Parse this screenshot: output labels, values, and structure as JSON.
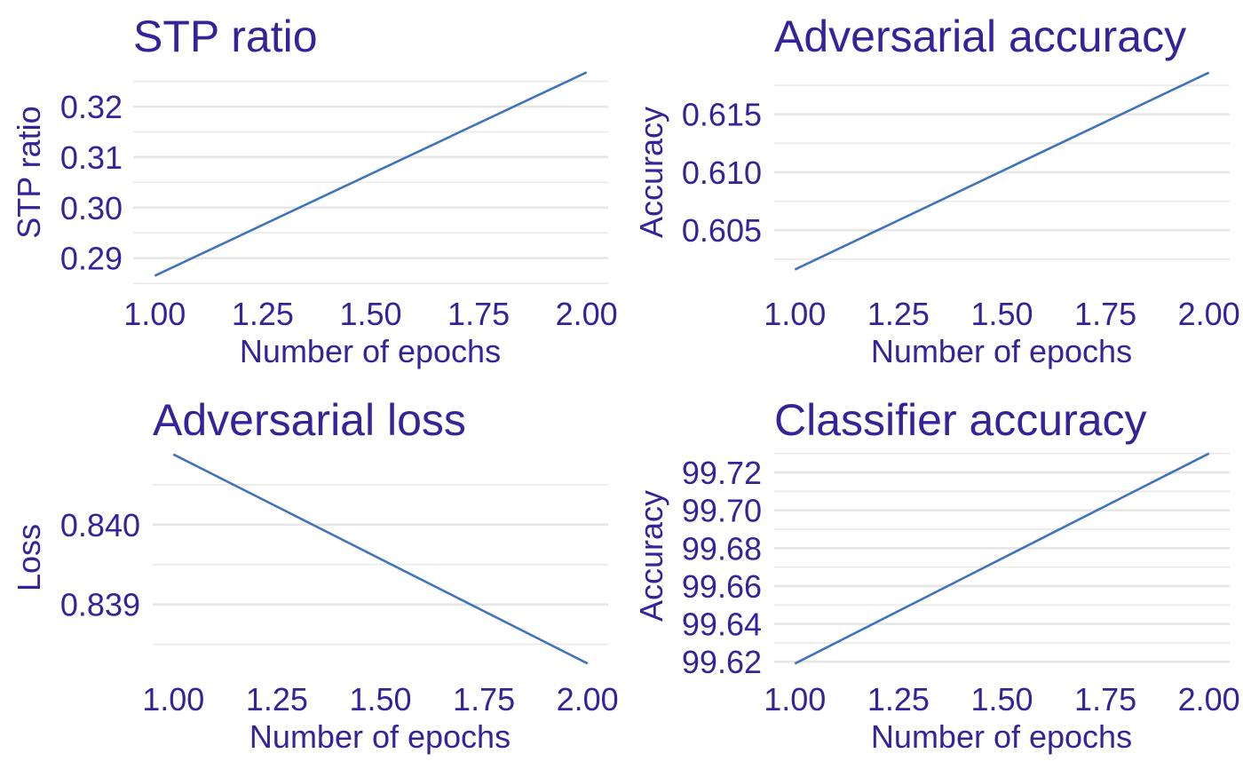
{
  "chart_data": [
    {
      "type": "line",
      "title": "STP ratio",
      "xlabel": "Number of epochs",
      "ylabel": "STP ratio",
      "x": [
        1.0,
        2.0
      ],
      "y": [
        0.2865,
        0.3268
      ],
      "xlim": [
        0.95,
        2.05
      ],
      "ylim": [
        0.2845,
        0.3288
      ],
      "xticks": [
        1.0,
        1.25,
        1.5,
        1.75,
        2.0
      ],
      "xtick_labels": [
        "1.00",
        "1.25",
        "1.50",
        "1.75",
        "2.00"
      ],
      "yticks": [
        0.29,
        0.3,
        0.31,
        0.32
      ],
      "ytick_labels": [
        "0.29",
        "0.30",
        "0.31",
        "0.32"
      ],
      "y_minor_ticks": [
        0.285,
        0.295,
        0.305,
        0.315,
        0.325
      ],
      "grid": "horizontal"
    },
    {
      "type": "line",
      "title": "Adversarial accuracy",
      "xlabel": "Number of epochs",
      "ylabel": "Accuracy",
      "x": [
        1.0,
        2.0
      ],
      "y": [
        0.6016,
        0.6186
      ],
      "xlim": [
        0.95,
        2.05
      ],
      "ylim": [
        0.6008,
        0.6195
      ],
      "xticks": [
        1.0,
        1.25,
        1.5,
        1.75,
        2.0
      ],
      "xtick_labels": [
        "1.00",
        "1.25",
        "1.50",
        "1.75",
        "2.00"
      ],
      "yticks": [
        0.605,
        0.61,
        0.615
      ],
      "ytick_labels": [
        "0.605",
        "0.610",
        "0.615"
      ],
      "y_minor_ticks": [
        0.6025,
        0.6075,
        0.6125,
        0.6175
      ],
      "grid": "horizontal"
    },
    {
      "type": "line",
      "title": "Adversarial loss",
      "xlabel": "Number of epochs",
      "ylabel": "Loss",
      "x": [
        1.0,
        2.0
      ],
      "y": [
        0.84088,
        0.83826
      ],
      "xlim": [
        0.95,
        2.05
      ],
      "ylim": [
        0.83814,
        0.84101
      ],
      "xticks": [
        1.0,
        1.25,
        1.5,
        1.75,
        2.0
      ],
      "xtick_labels": [
        "1.00",
        "1.25",
        "1.50",
        "1.75",
        "2.00"
      ],
      "yticks": [
        0.839,
        0.84
      ],
      "ytick_labels": [
        "0.839",
        "0.840"
      ],
      "y_minor_ticks": [
        0.8385,
        0.8395,
        0.8405
      ],
      "grid": "horizontal"
    },
    {
      "type": "line",
      "title": "Classifier accuracy",
      "xlabel": "Number of epochs",
      "ylabel": "Accuracy",
      "x": [
        1.0,
        2.0
      ],
      "y": [
        99.619,
        99.73
      ],
      "xlim": [
        0.95,
        2.05
      ],
      "ylim": [
        99.614,
        99.735
      ],
      "xticks": [
        1.0,
        1.25,
        1.5,
        1.75,
        2.0
      ],
      "xtick_labels": [
        "1.00",
        "1.25",
        "1.50",
        "1.75",
        "2.00"
      ],
      "yticks": [
        99.62,
        99.64,
        99.66,
        99.68,
        99.7,
        99.72
      ],
      "ytick_labels": [
        "99.62",
        "99.64",
        "99.66",
        "99.68",
        "99.70",
        "99.72"
      ],
      "y_minor_ticks": [
        99.63,
        99.65,
        99.67,
        99.69,
        99.71,
        99.73
      ],
      "grid": "horizontal"
    }
  ]
}
